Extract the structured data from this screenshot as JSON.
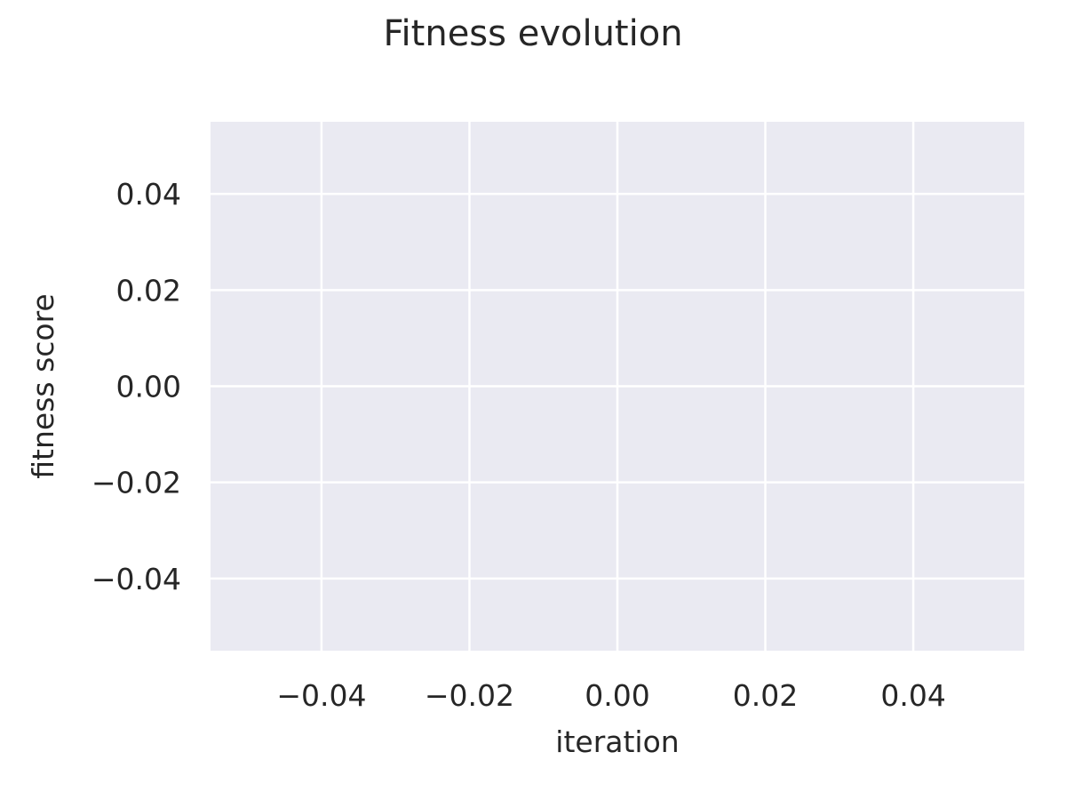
{
  "chart_data": {
    "type": "line",
    "title": "Fitness evolution",
    "xlabel": "iteration",
    "ylabel": "fitness score",
    "xlim": [
      -0.055,
      0.055
    ],
    "ylim": [
      -0.055,
      0.055
    ],
    "xticks": [
      -0.04,
      -0.02,
      0.0,
      0.02,
      0.04
    ],
    "xtick_labels": [
      "−0.04",
      "−0.02",
      "0.00",
      "0.02",
      "0.04"
    ],
    "yticks": [
      0.04,
      0.02,
      0.0,
      -0.02,
      -0.04
    ],
    "ytick_labels": [
      "0.04",
      "0.02",
      "0.00",
      "−0.02",
      "−0.04"
    ],
    "series": [
      {
        "values": []
      }
    ],
    "grid": true,
    "legend": "none",
    "colors": {
      "plot_background": "#eaeaf2",
      "grid": "#ffffff",
      "text": "#262626"
    }
  }
}
